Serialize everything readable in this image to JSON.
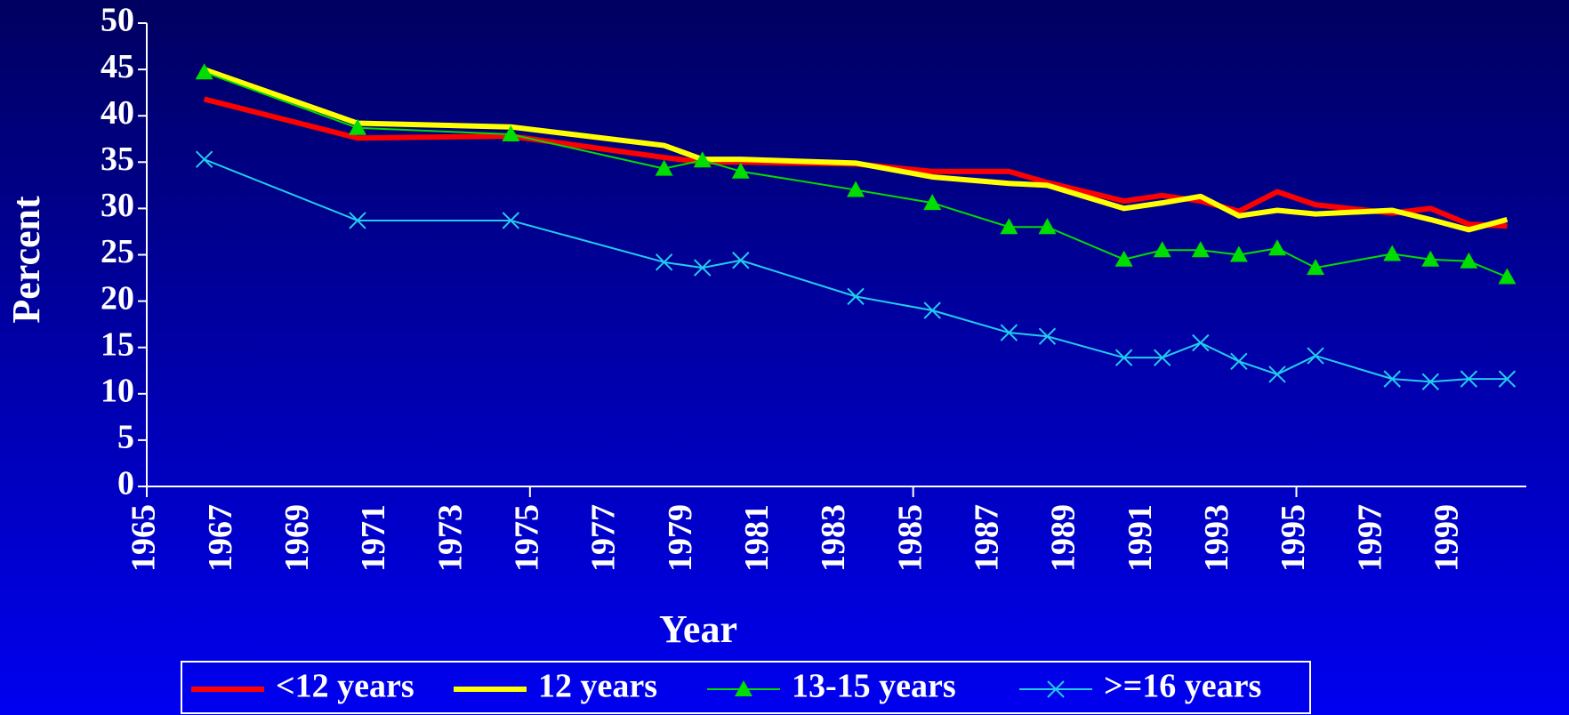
{
  "chart_data": {
    "type": "line",
    "x": [
      1966.5,
      1970.5,
      1974.5,
      1978.5,
      1979.5,
      1980.5,
      1983.5,
      1985.5,
      1987.5,
      1988.5,
      1990.5,
      1991.5,
      1992.5,
      1993.5,
      1994.5,
      1995.5,
      1997.5,
      1998.5,
      1999.5,
      2000.5
    ],
    "series": [
      {
        "name": "<12 years",
        "color": "#ff0000",
        "marker": "none",
        "width": 6,
        "values": [
          41.8,
          37.6,
          37.8,
          35.5,
          35,
          35,
          34.8,
          34,
          34,
          32.8,
          30.8,
          31.4,
          30.8,
          29.7,
          31.8,
          30.4,
          29.5,
          30,
          28.3,
          28.1
        ]
      },
      {
        "name": "12 years",
        "color": "#ffff00",
        "marker": "none",
        "width": 6,
        "values": [
          45,
          39.2,
          38.8,
          36.8,
          35.3,
          35.3,
          34.9,
          33.4,
          32.7,
          32.5,
          30,
          30.6,
          31.3,
          29.2,
          29.8,
          29.4,
          29.8,
          28.8,
          27.7,
          28.8
        ]
      },
      {
        "name": "13-15 years",
        "color": "#00dd00",
        "marker": "triangle",
        "width": 2,
        "values": [
          44.7,
          38.7,
          38,
          34.3,
          35.2,
          34,
          32,
          30.6,
          28,
          28,
          24.5,
          25.5,
          25.5,
          25,
          25.7,
          23.6,
          25.1,
          24.5,
          24.3,
          22.6
        ]
      },
      {
        "name": ">=16 years",
        "color": "#22ccee",
        "marker": "x",
        "width": 2,
        "values": [
          35.3,
          28.7,
          28.7,
          24.2,
          23.6,
          24.4,
          20.5,
          19,
          16.6,
          16.2,
          13.9,
          13.9,
          15.5,
          13.5,
          12.1,
          14.1,
          11.6,
          11.3,
          11.6,
          11.6
        ]
      }
    ],
    "xlabel": "Year",
    "ylabel": "Percent",
    "xlim": [
      1965,
      2001
    ],
    "xticks": [
      1965,
      1967,
      1969,
      1971,
      1973,
      1975,
      1977,
      1979,
      1981,
      1983,
      1985,
      1987,
      1989,
      1991,
      1993,
      1995,
      1997,
      1999
    ],
    "ylim": [
      0,
      50
    ],
    "yticks": [
      0,
      5,
      10,
      15,
      20,
      25,
      30,
      35,
      40,
      45,
      50
    ]
  }
}
